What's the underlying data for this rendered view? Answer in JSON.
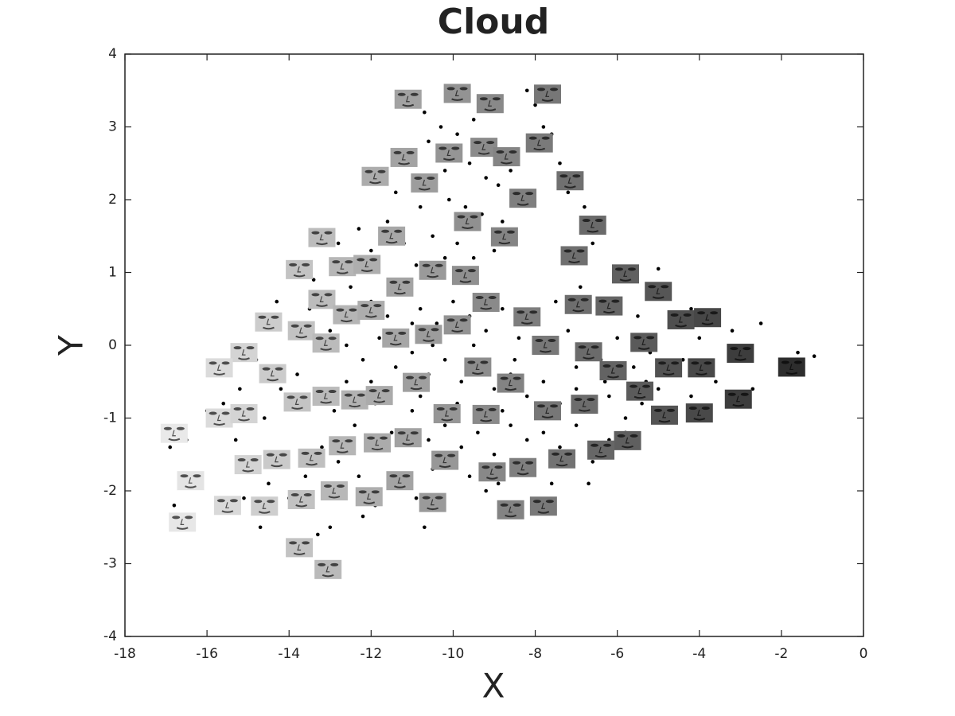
{
  "chart_data": {
    "type": "scatter",
    "title": "Cloud",
    "x_label": "X",
    "y_label": "Y",
    "xlim": [
      -18,
      0
    ],
    "ylim": [
      -4,
      4
    ],
    "xticks": [
      -18,
      -16,
      -14,
      -12,
      -10,
      -8,
      -6,
      -4,
      -2,
      0
    ],
    "yticks": [
      -4,
      -3,
      -2,
      -1,
      0,
      1,
      2,
      3,
      4
    ],
    "series": [
      {
        "marker": "dot",
        "color": "#000000",
        "x": [
          -10.7,
          -10.3,
          -9.9,
          -9.5,
          -8.0,
          -7.8,
          -7.6,
          -8.2,
          -10.6,
          -11.0,
          -10.2,
          -9.6,
          -9.2,
          -8.9,
          -8.6,
          -11.4,
          -10.8,
          -10.1,
          -9.7,
          -9.3,
          -8.8,
          -11.6,
          -11.2,
          -10.5,
          -9.9,
          -9.5,
          -9.0,
          -10.9,
          -10.2,
          -12.3,
          -12.0,
          -7.4,
          -7.2,
          -6.8,
          -6.6,
          -12.8,
          -12.5,
          -12.0,
          -11.6,
          -11.2,
          -10.8,
          -10.4,
          -10.0,
          -9.6,
          -9.2,
          -8.8,
          -8.4,
          -8.0,
          -7.6,
          -7.2,
          -6.8,
          -6.4,
          -6.0,
          -5.6,
          -5.2,
          -4.8,
          -4.4,
          -4.0,
          -3.6,
          -3.2,
          -2.7,
          -2.5,
          -1.2,
          -1.6,
          -13.5,
          -13.0,
          -12.6,
          -12.2,
          -11.8,
          -11.4,
          -11.0,
          -10.6,
          -10.2,
          -9.8,
          -9.4,
          -9.0,
          -8.6,
          -8.2,
          -7.8,
          -7.4,
          -7.0,
          -6.6,
          -6.2,
          -5.8,
          -5.4,
          -5.0,
          -4.6,
          -4.2,
          -13.8,
          -13.3,
          -12.9,
          -12.4,
          -11.9,
          -11.5,
          -11.0,
          -10.6,
          -10.2,
          -9.8,
          -9.4,
          -9.0,
          -8.6,
          -8.2,
          -7.8,
          -7.4,
          -7.0,
          -6.6,
          -6.2,
          -5.8,
          -6.7,
          -8.9,
          -14.3,
          -14.6,
          -14.8,
          -14.2,
          -14.6,
          -15.2,
          -15.6,
          -16.0,
          -16.5,
          -16.9,
          -15.3,
          -14.9,
          -14.5,
          -14.0,
          -13.6,
          -13.2,
          -12.8,
          -12.3,
          -11.9,
          -11.4,
          -10.9,
          -10.5,
          -10.7,
          -12.2,
          -14.7,
          -15.1,
          -16.8,
          -13.3,
          -13.0,
          -9.6,
          -9.2,
          -8.1,
          -7.6,
          -12.6,
          -13.4,
          -11.3,
          -10.8,
          -9.5,
          -8.5,
          -7.5,
          -6.9,
          -6.2,
          -5.5,
          -5.0,
          -4.2,
          -3.8,
          -3.3,
          -3.6,
          -7.0,
          -6.3,
          -5.3,
          -8.8,
          -9.9,
          -10.5,
          -12.0,
          -11.0
        ],
        "values": [
          3.2,
          3.0,
          2.9,
          3.1,
          3.3,
          3.0,
          2.9,
          3.5,
          2.8,
          2.5,
          2.4,
          2.5,
          2.3,
          2.2,
          2.4,
          2.1,
          1.9,
          2.0,
          1.9,
          1.8,
          1.7,
          1.7,
          1.4,
          1.5,
          1.4,
          1.2,
          1.3,
          1.1,
          1.2,
          1.6,
          1.3,
          2.5,
          2.1,
          1.9,
          1.4,
          1.4,
          0.8,
          0.6,
          0.4,
          0.7,
          0.5,
          0.3,
          0.6,
          0.4,
          0.2,
          0.5,
          0.1,
          0.3,
          -0.1,
          0.2,
          0.0,
          -0.2,
          0.1,
          -0.3,
          -0.1,
          -0.4,
          -0.2,
          0.1,
          -0.5,
          0.2,
          -0.6,
          0.3,
          -0.15,
          -0.1,
          0.5,
          0.2,
          0.0,
          -0.2,
          0.1,
          -0.3,
          -0.1,
          -0.4,
          -0.2,
          -0.5,
          -0.3,
          -0.6,
          -0.4,
          -0.7,
          -0.5,
          -0.8,
          -0.6,
          -0.9,
          -0.7,
          -1.0,
          -0.8,
          -0.6,
          -0.9,
          -0.7,
          -0.4,
          -0.6,
          -0.9,
          -1.1,
          -0.8,
          -1.2,
          -0.9,
          -1.3,
          -1.1,
          -1.4,
          -1.2,
          -1.5,
          -1.1,
          -1.3,
          -1.2,
          -1.4,
          -1.1,
          -1.6,
          -1.3,
          -1.2,
          -1.9,
          -1.9,
          0.6,
          0.3,
          -0.2,
          -0.6,
          -1.0,
          -0.6,
          -0.8,
          -0.9,
          -1.3,
          -1.4,
          -1.3,
          -1.6,
          -1.9,
          -2.1,
          -1.8,
          -1.4,
          -1.6,
          -1.8,
          -2.2,
          -1.9,
          -2.1,
          -1.7,
          -2.5,
          -2.35,
          -2.5,
          -2.1,
          -2.2,
          -2.6,
          -2.5,
          -1.8,
          -2.0,
          -1.7,
          -1.9,
          -0.5,
          0.9,
          0.9,
          -0.7,
          0.0,
          -0.2,
          0.6,
          0.8,
          0.6,
          0.4,
          1.05,
          0.5,
          -0.3,
          -0.8,
          0.35,
          -0.3,
          -0.5,
          -0.5,
          -0.9,
          -0.8,
          0.0,
          -0.5,
          0.3
        ]
      },
      {
        "marker": "face",
        "x": [
          -11.1,
          -9.9,
          -9.1,
          -7.7,
          -7.9,
          -10.1,
          -9.25,
          -8.7,
          -11.2,
          -11.9,
          -10.7,
          -7.15,
          -8.3,
          -6.6,
          -9.65,
          -8.75,
          -11.5,
          -13.2,
          -7.05,
          -5.8,
          -5.0,
          -13.75,
          -12.7,
          -12.1,
          -10.5,
          -9.7,
          -11.3,
          -9.2,
          -6.95,
          -6.2,
          -8.2,
          -4.45,
          -3.8,
          -13.2,
          -12.6,
          -12.0,
          -14.5,
          -13.7,
          -13.1,
          -11.4,
          -10.6,
          -9.9,
          -7.75,
          -6.7,
          -5.35,
          -3.0,
          -15.1,
          -15.7,
          -14.4,
          -9.4,
          -6.1,
          -4.75,
          -3.95,
          -1.75,
          -10.9,
          -8.6,
          -5.45,
          -13.8,
          -13.1,
          -12.4,
          -11.8,
          -3.05,
          -6.8,
          -7.7,
          -10.15,
          -9.2,
          -4.85,
          -4.0,
          -15.7,
          -15.1,
          -16.8,
          -12.7,
          -11.85,
          -11.1,
          -5.75,
          -6.4,
          -13.45,
          -14.3,
          -15.0,
          -10.2,
          -7.35,
          -8.3,
          -9.05,
          -16.4,
          -11.3,
          -12.9,
          -12.05,
          -13.7,
          -14.6,
          -15.5,
          -10.5,
          -8.6,
          -7.8,
          -16.6,
          -13.75,
          -13.05
        ],
        "values": [
          3.38,
          3.46,
          3.32,
          3.45,
          2.78,
          2.64,
          2.72,
          2.59,
          2.58,
          2.32,
          2.23,
          2.26,
          2.02,
          1.65,
          1.7,
          1.49,
          1.5,
          1.48,
          1.23,
          0.98,
          0.74,
          1.04,
          1.08,
          1.11,
          1.03,
          0.96,
          0.8,
          0.59,
          0.56,
          0.54,
          0.39,
          0.35,
          0.38,
          0.63,
          0.42,
          0.48,
          0.32,
          0.2,
          0.03,
          0.1,
          0.15,
          0.28,
          0.0,
          -0.09,
          0.04,
          -0.11,
          -0.1,
          -0.31,
          -0.39,
          -0.3,
          -0.35,
          -0.31,
          -0.31,
          -0.3,
          -0.51,
          -0.52,
          -0.63,
          -0.78,
          -0.7,
          -0.75,
          -0.69,
          -0.74,
          -0.81,
          -0.9,
          -0.94,
          -0.95,
          -0.96,
          -0.93,
          -1.0,
          -0.94,
          -1.21,
          -1.38,
          -1.34,
          -1.27,
          -1.31,
          -1.44,
          -1.55,
          -1.57,
          -1.64,
          -1.58,
          -1.56,
          -1.68,
          -1.74,
          -1.86,
          -1.86,
          -2.0,
          -2.08,
          -2.12,
          -2.21,
          -2.2,
          -2.16,
          -2.26,
          -2.21,
          -2.43,
          -2.78,
          -3.08
        ]
      }
    ]
  }
}
